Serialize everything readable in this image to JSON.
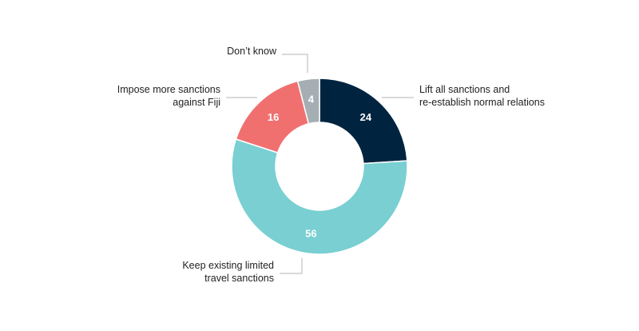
{
  "chart_data": {
    "type": "pie",
    "donut": true,
    "categories": [
      [
        "Lift all sanctions and",
        "re-establish normal relations"
      ],
      [
        "Keep existing limited",
        "travel sanctions"
      ],
      [
        "Impose more sanctions",
        "against Fiji"
      ],
      [
        "Don’t know"
      ]
    ],
    "values": [
      24,
      56,
      16,
      4
    ],
    "value_labels": [
      "24",
      "56",
      "16",
      "4"
    ],
    "colors": [
      "#00243f",
      "#79cfd2",
      "#f07070",
      "#a5afb3"
    ],
    "label_placement": "outside-with-leader-lines"
  }
}
